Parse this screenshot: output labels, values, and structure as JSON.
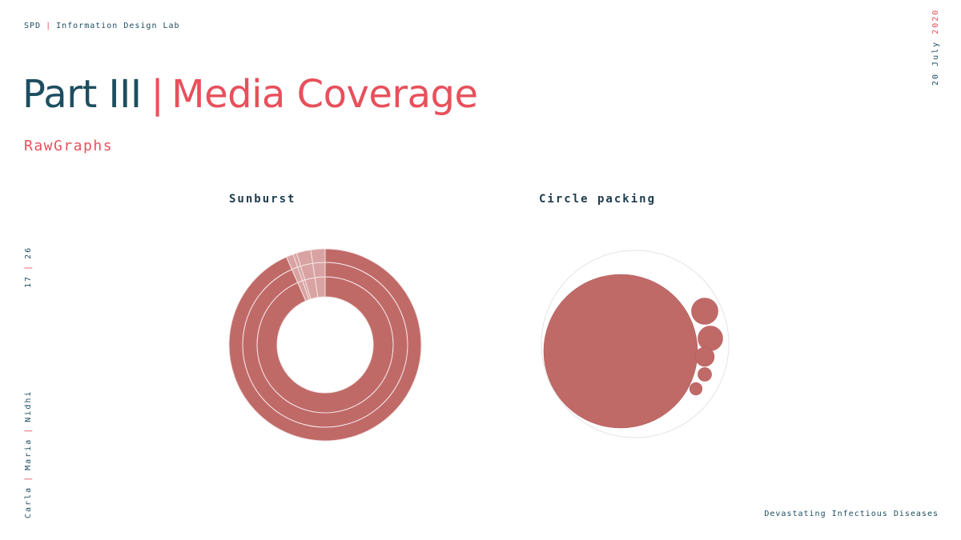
{
  "header": {
    "org": "SPD",
    "lab": "Information Design Lab"
  },
  "title": {
    "part": "Part III",
    "topic": "Media Coverage"
  },
  "subtitle": "RawGraphs",
  "date": {
    "day_month": "20 July",
    "year": "2020"
  },
  "pages": {
    "current": "17",
    "total": "26"
  },
  "authors": [
    "Carla",
    "Maria",
    "Nidhi"
  ],
  "footer": "Devastating Infectious Diseases",
  "colors": {
    "navy": "#1d4e60",
    "accent": "#e8505b",
    "mark": "#c06a68",
    "mark_light": "#d8a3a2"
  },
  "chart_data": [
    {
      "type": "sunburst",
      "title": "Sunburst",
      "rings": [
        {
          "level": 1,
          "segments": [
            {
              "share": 0.934
            },
            {
              "share": 0.012
            },
            {
              "share": 0.006
            },
            {
              "share": 0.024
            },
            {
              "share": 0.024
            }
          ]
        },
        {
          "level": 2,
          "segments": [
            {
              "share": 0.934
            },
            {
              "share": 0.012
            },
            {
              "share": 0.006
            },
            {
              "share": 0.024
            },
            {
              "share": 0.024
            }
          ]
        },
        {
          "level": 3,
          "segments": [
            {
              "share": 0.934
            },
            {
              "share": 0.012
            },
            {
              "share": 0.006
            },
            {
              "share": 0.024
            },
            {
              "share": 0.024
            }
          ]
        }
      ]
    },
    {
      "type": "circle-packing",
      "title": "Circle packing",
      "circles": [
        {
          "relative_radius": 1.0
        },
        {
          "relative_radius": 0.172
        },
        {
          "relative_radius": 0.161
        },
        {
          "relative_radius": 0.124
        },
        {
          "relative_radius": 0.089
        },
        {
          "relative_radius": 0.081
        }
      ]
    }
  ]
}
